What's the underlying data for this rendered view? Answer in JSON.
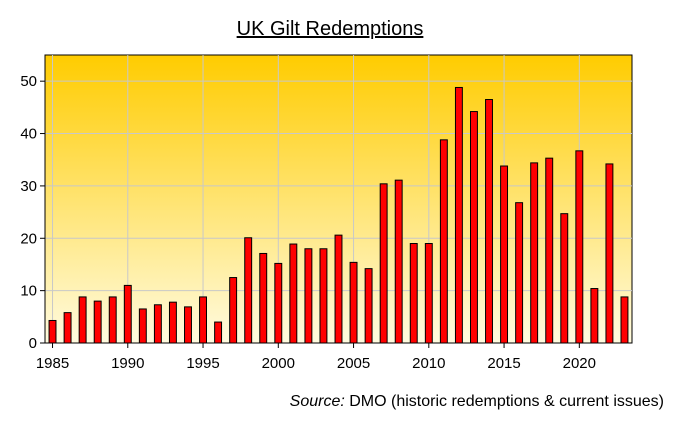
{
  "chart_data": {
    "type": "bar",
    "title": "UK Gilt Redemptions",
    "xlabel": "",
    "ylabel": "",
    "x": [
      1985,
      1986,
      1987,
      1988,
      1989,
      1990,
      1991,
      1992,
      1993,
      1994,
      1995,
      1996,
      1997,
      1998,
      1999,
      2000,
      2001,
      2002,
      2003,
      2004,
      2005,
      2006,
      2007,
      2008,
      2009,
      2010,
      2011,
      2012,
      2013,
      2014,
      2015,
      2016,
      2017,
      2018,
      2019,
      2020,
      2021,
      2022,
      2023
    ],
    "values": [
      4.3,
      5.8,
      8.8,
      8.0,
      8.8,
      11.0,
      6.5,
      7.3,
      7.8,
      6.9,
      8.8,
      4.0,
      12.5,
      20.1,
      17.1,
      15.2,
      18.9,
      18.0,
      18.0,
      20.6,
      15.4,
      14.2,
      30.4,
      31.1,
      19.0,
      19.0,
      38.8,
      48.8,
      44.2,
      46.5,
      33.8,
      26.8,
      34.4,
      35.3,
      24.7,
      36.7,
      10.4,
      34.2,
      8.8
    ],
    "xticks": [
      "1985",
      "1990",
      "1995",
      "2000",
      "2005",
      "2010",
      "2015",
      "2020"
    ],
    "yticks": [
      "0",
      "10",
      "20",
      "30",
      "40",
      "50"
    ],
    "ylim": [
      0,
      55
    ],
    "xlim": [
      1984.5,
      2023.5
    ],
    "grid": true,
    "legend": "none",
    "colors": {
      "bar_fill": "#ff0000",
      "bar_stroke": "#000000",
      "plot_bg_top": "#ffcc00",
      "plot_bg_bottom": "#fffbe0",
      "grid": "#c8c8c8"
    }
  },
  "source": {
    "label": "Source:",
    "text": "DMO (historic redemptions & current issues)"
  }
}
